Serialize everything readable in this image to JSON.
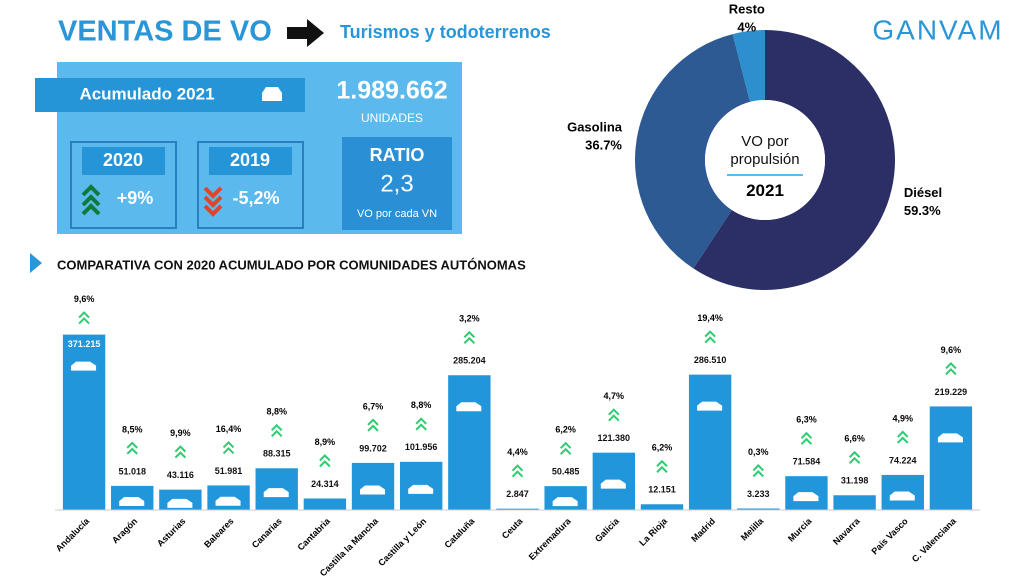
{
  "header": {
    "title": "VENTAS DE VO",
    "subtitle": "Turismos y todoterrenos",
    "logo": "GANVAM"
  },
  "kpi": {
    "label": "Acumulado 2021",
    "total": "1.989.662",
    "unit": "UNIDADES",
    "year_a": "2020",
    "change_a": "+9%",
    "year_b": "2019",
    "change_b": "-5,2%",
    "ratio_label": "RATIO",
    "ratio": "2,3",
    "ratio_note": "VO por cada VN"
  },
  "chart_data": [
    {
      "type": "pie",
      "title": "VO por propulsión",
      "subtitle": "2021",
      "categories": [
        "Diésel",
        "Gasolina",
        "Resto"
      ],
      "values": [
        59.3,
        36.7,
        4
      ],
      "value_labels": [
        "59.3%",
        "36.7%",
        "4%"
      ],
      "colors": [
        "#2b2f66",
        "#2e5a94",
        "#2e8fcf"
      ]
    },
    {
      "type": "bar",
      "title": "COMPARATIVA CON 2020 ACUMULADO POR COMUNIDADES AUTÓNOMAS",
      "categories": [
        "Andalucía",
        "Aragón",
        "Asturias",
        "Baleares",
        "Canarias",
        "Cantabria",
        "Castilla la Mancha",
        "Castilla y León",
        "Cataluña",
        "Ceuta",
        "Extremadura",
        "Galicia",
        "La Rioja",
        "Madrid",
        "Melilla",
        "Murcia",
        "Navarra",
        "País Vasco",
        "C. Valenciana"
      ],
      "values": [
        371215,
        51018,
        43116,
        51981,
        88315,
        24314,
        99702,
        101956,
        285204,
        2847,
        50485,
        121380,
        12151,
        286510,
        3233,
        71584,
        31198,
        74224,
        219229
      ],
      "value_labels": [
        "371.215",
        "51.018",
        "43.116",
        "51.981",
        "88.315",
        "24.314",
        "99.702",
        "101.956",
        "285.204",
        "2.847",
        "50.485",
        "121.380",
        "12.151",
        "286.510",
        "3.233",
        "71.584",
        "31.198",
        "74.224",
        "219.229"
      ],
      "changes": [
        9.6,
        8.5,
        9.9,
        16.4,
        8.8,
        8.9,
        6.7,
        8.8,
        3.2,
        4.4,
        6.2,
        4.7,
        6.2,
        19.4,
        0.3,
        6.3,
        6.6,
        4.9,
        9.6
      ],
      "change_labels": [
        "9,6%",
        "8,5%",
        "9,9%",
        "16,4%",
        "8,8%",
        "8,9%",
        "6,7%",
        "8,8%",
        "3,2%",
        "4,4%",
        "6,2%",
        "4,7%",
        "6,2%",
        "19,4%",
        "0,3%",
        "6,3%",
        "6,6%",
        "4,9%",
        "9,6%"
      ],
      "color": "#2196db",
      "ylim": [
        0,
        400000
      ]
    }
  ]
}
